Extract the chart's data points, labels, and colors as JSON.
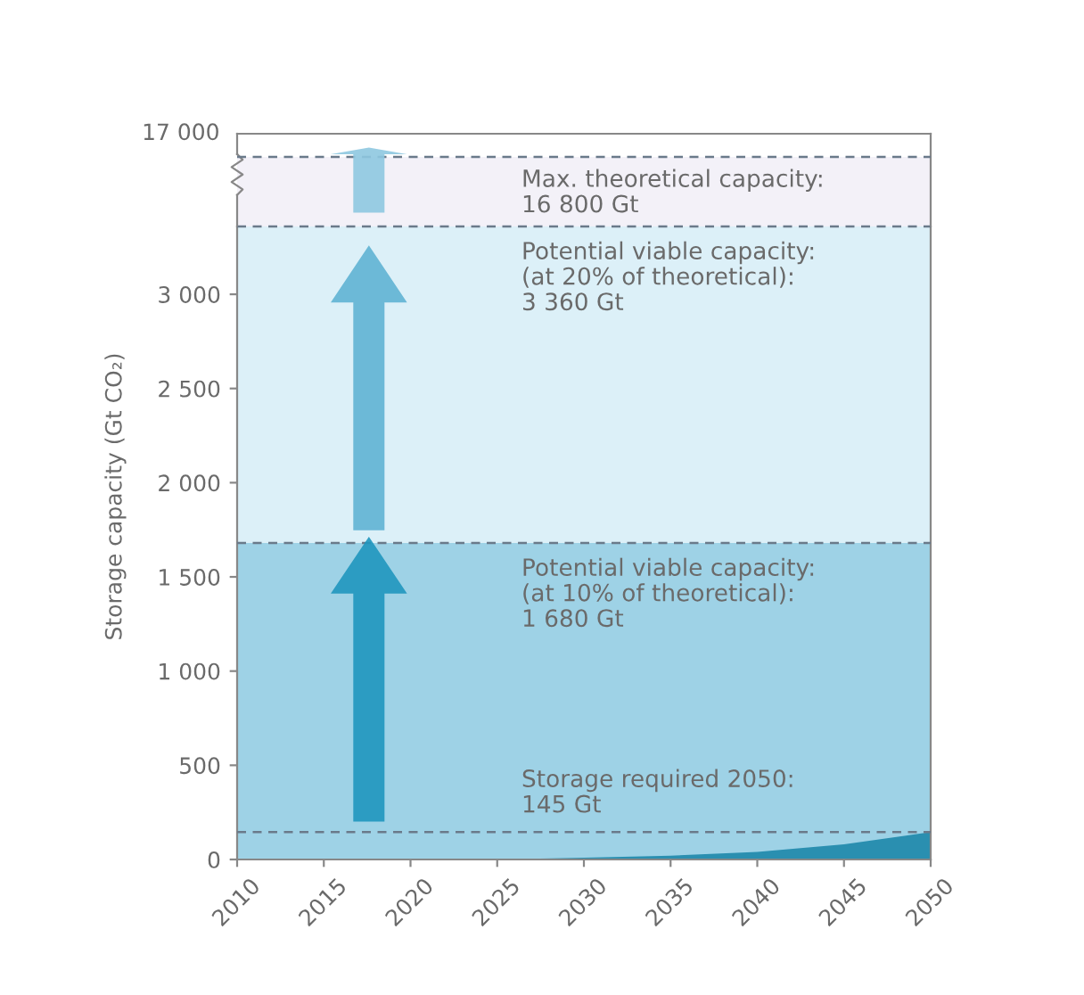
{
  "chart_data": [
    {
      "type": "other",
      "ylabel": "Storage capacity (Gt CO₂)",
      "annotations": [
        "17 000",
        "Max. theoretical capacity:\n16 800 Gt"
      ]
    },
    {
      "type": "area",
      "xlim": [
        2010,
        2050
      ],
      "xticks": [
        2010,
        2015,
        2020,
        2025,
        2030,
        2035,
        2040,
        2045,
        2050
      ],
      "ylim": [
        0,
        3360
      ],
      "yticks": [
        0,
        500,
        1000,
        1500,
        2000,
        2500,
        3000
      ],
      "grid": false,
      "series": [
        {
          "color": "#2a8fb0",
          "x": [
            2010,
            2020,
            2025,
            2030,
            2035,
            2040,
            2045,
            2050
          ],
          "values": [
            0,
            0,
            0,
            10,
            20,
            40,
            80,
            145
          ]
        }
      ],
      "bands": [
        {
          "axis": "y",
          "from": 1680,
          "to": 3360,
          "color": "#dcf0f8"
        },
        {
          "axis": "y",
          "from": 0,
          "to": 1680,
          "color": "#9ed2e6"
        }
      ],
      "ref_lines": [
        {
          "axis": "y",
          "value": 3360,
          "label": "Potential viable capacity:\n(at 20% of theoretical):\n3 360 Gt",
          "color": "#6a7a8a",
          "line_style": "dashed"
        },
        {
          "axis": "y",
          "value": 1680,
          "label": "Potential viable capacity:\n(at 10% of theoretical):\n1 680 Gt",
          "color": "#6a7a8a",
          "line_style": "dashed"
        },
        {
          "axis": "y",
          "value": 145,
          "label": "Storage required 2050:\n145 Gt",
          "color": "#6a7a8a",
          "line_style": "dashed"
        }
      ]
    }
  ]
}
